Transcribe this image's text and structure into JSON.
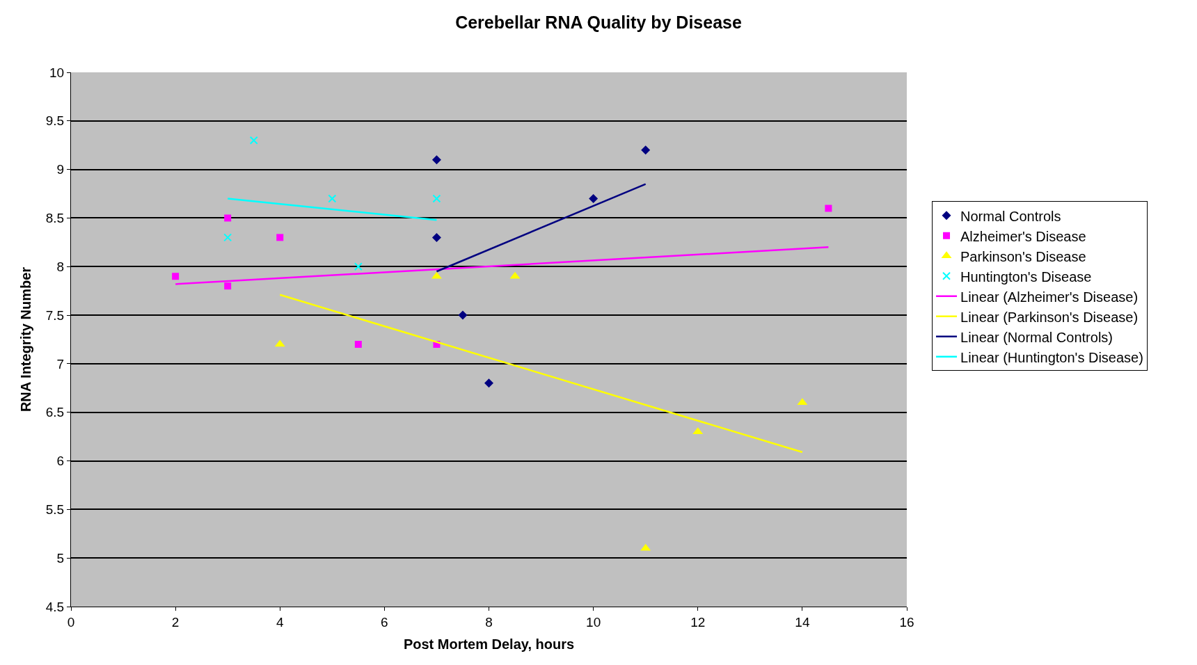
{
  "chart_data": {
    "type": "scatter",
    "title": "Cerebellar RNA Quality by Disease",
    "xlabel": "Post Mortem Delay, hours",
    "ylabel": "RNA Integrity Number",
    "xlim": [
      0,
      16
    ],
    "xticks": [
      0,
      2,
      4,
      6,
      8,
      10,
      12,
      14,
      16
    ],
    "ylim": [
      4.5,
      10
    ],
    "yticks": [
      4.5,
      5,
      5.5,
      6,
      6.5,
      7,
      7.5,
      8,
      8.5,
      9,
      9.5,
      10
    ],
    "grid": "y",
    "legend": "right",
    "series": [
      {
        "name": "Normal Controls",
        "marker": "diamond",
        "color": "#000080",
        "x": [
          7,
          7,
          7.5,
          8,
          10,
          11
        ],
        "values": [
          9.1,
          8.3,
          7.5,
          6.8,
          8.7,
          9.2
        ]
      },
      {
        "name": "Alzheimer's Disease",
        "marker": "square",
        "color": "#ff00ff",
        "x": [
          2,
          3,
          3,
          4,
          5.5,
          7,
          14.5
        ],
        "values": [
          7.9,
          8.5,
          7.8,
          8.3,
          7.2,
          7.2,
          8.6
        ]
      },
      {
        "name": "Parkinson's Disease",
        "marker": "triangle",
        "color": "#ffff00",
        "x": [
          4,
          7,
          8.5,
          11,
          12,
          14
        ],
        "values": [
          7.2,
          7.9,
          7.9,
          5.1,
          6.3,
          6.6
        ]
      },
      {
        "name": "Huntington's Disease",
        "marker": "cross",
        "color": "#00ffff",
        "x": [
          3,
          3.5,
          5,
          5.5,
          7
        ],
        "values": [
          8.3,
          9.3,
          8.7,
          8.0,
          8.7
        ]
      },
      {
        "name": "Linear (Alzheimer's Disease)",
        "type": "line",
        "marker": "none",
        "color": "#ff00ff",
        "x": [
          2,
          14.5
        ],
        "values": [
          7.82,
          8.2
        ]
      },
      {
        "name": "Linear (Parkinson's Disease)",
        "type": "line",
        "marker": "none",
        "color": "#ffff00",
        "x": [
          4,
          14
        ],
        "values": [
          7.71,
          6.09
        ]
      },
      {
        "name": "Linear (Normal Controls)",
        "type": "line",
        "marker": "none",
        "color": "#000080",
        "x": [
          7,
          11
        ],
        "values": [
          7.95,
          8.85
        ]
      },
      {
        "name": "Linear (Huntington's Disease)",
        "type": "line",
        "marker": "none",
        "color": "#00ffff",
        "x": [
          3,
          7
        ],
        "values": [
          8.7,
          8.48
        ]
      }
    ]
  }
}
